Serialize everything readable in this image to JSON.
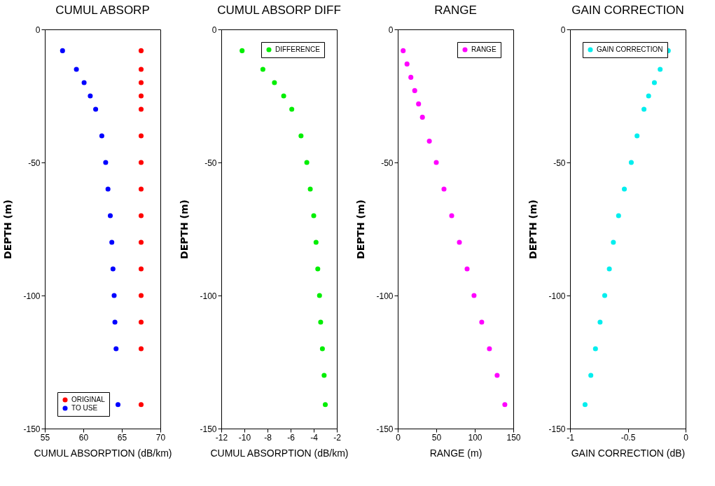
{
  "chart_data": [
    {
      "type": "scatter",
      "title": "CUMUL ABSORP",
      "xlabel": "CUMUL ABSORPTION (dB/km)",
      "ylabel": "DEPTH (m)",
      "xlim": [
        55,
        70
      ],
      "xticks": [
        55,
        60,
        65,
        70
      ],
      "ylim": [
        -150,
        0
      ],
      "yticks": [
        -150,
        -100,
        -50,
        0
      ],
      "marker": "circle",
      "legend": "bottom left",
      "grid": false,
      "series": [
        {
          "name": "ORIGINAL",
          "color": "#ff0000",
          "x": [
            67.5,
            67.5,
            67.5,
            67.5,
            67.5,
            67.5,
            67.5,
            67.5,
            67.5,
            67.5,
            67.5,
            67.5,
            67.5,
            67.5,
            67.5
          ],
          "values": [
            -8,
            -15,
            -20,
            -25,
            -30,
            -40,
            -50,
            -60,
            -70,
            -80,
            -90,
            -100,
            -110,
            -120,
            -141
          ]
        },
        {
          "name": "TO USE",
          "color": "#0000ff",
          "x": [
            57.3,
            59.1,
            60.1,
            60.9,
            61.6,
            62.4,
            62.9,
            63.2,
            63.5,
            63.7,
            63.85,
            64.0,
            64.1,
            64.25,
            64.5
          ],
          "values": [
            -8,
            -15,
            -20,
            -25,
            -30,
            -40,
            -50,
            -60,
            -70,
            -80,
            -90,
            -100,
            -110,
            -120,
            -141
          ]
        }
      ]
    },
    {
      "type": "scatter",
      "title": "CUMUL ABSORP DIFF",
      "xlabel": "CUMUL ABSORPTION (dB/km)",
      "ylabel": "DEPTH (m)",
      "xlim": [
        -12,
        -2
      ],
      "xticks": [
        -12,
        -10,
        -8,
        -6,
        -4,
        -2
      ],
      "ylim": [
        -150,
        0
      ],
      "yticks": [
        -150,
        -100,
        -50,
        0
      ],
      "marker": "circle",
      "legend": "top right",
      "grid": false,
      "series": [
        {
          "name": "DIFFERENCE",
          "color": "#00ee00",
          "x": [
            -10.2,
            -8.4,
            -7.4,
            -6.6,
            -5.9,
            -5.1,
            -4.6,
            -4.3,
            -4.0,
            -3.8,
            -3.65,
            -3.5,
            -3.4,
            -3.25,
            -3.1,
            -3.0
          ],
          "values": [
            -8,
            -15,
            -20,
            -25,
            -30,
            -40,
            -50,
            -60,
            -70,
            -80,
            -90,
            -100,
            -110,
            -120,
            -130,
            -141
          ]
        }
      ]
    },
    {
      "type": "scatter",
      "title": "RANGE",
      "xlabel": "RANGE (m)",
      "ylabel": "DEPTH (m)",
      "xlim": [
        0,
        150
      ],
      "xticks": [
        0,
        50,
        100,
        150
      ],
      "ylim": [
        -150,
        0
      ],
      "yticks": [
        -150,
        -100,
        -50,
        0
      ],
      "marker": "circle",
      "legend": "top right",
      "grid": false,
      "series": [
        {
          "name": "RANGE",
          "color": "#ff00ff",
          "x": [
            7,
            12,
            17,
            22,
            27,
            32,
            41,
            50,
            60,
            70,
            80,
            90,
            99,
            109,
            119,
            129,
            139
          ],
          "values": [
            -8,
            -13,
            -18,
            -23,
            -28,
            -33,
            -42,
            -50,
            -60,
            -70,
            -80,
            -90,
            -100,
            -110,
            -120,
            -130,
            -141
          ]
        }
      ]
    },
    {
      "type": "scatter",
      "title": "GAIN CORRECTION",
      "xlabel": "GAIN CORRECTION (dB)",
      "ylabel": "DEPTH (m)",
      "xlim": [
        -1,
        0
      ],
      "xticks": [
        -1,
        -0.5,
        0
      ],
      "ylim": [
        -150,
        0
      ],
      "yticks": [
        -150,
        -100,
        -50,
        0
      ],
      "marker": "circle",
      "legend": "top left",
      "grid": false,
      "series": [
        {
          "name": "GAIN CORRECTION",
          "color": "#00eeee",
          "x": [
            -0.15,
            -0.22,
            -0.27,
            -0.32,
            -0.36,
            -0.42,
            -0.47,
            -0.53,
            -0.58,
            -0.625,
            -0.66,
            -0.7,
            -0.74,
            -0.78,
            -0.82,
            -0.87
          ],
          "values": [
            -8,
            -15,
            -20,
            -25,
            -30,
            -40,
            -50,
            -60,
            -70,
            -80,
            -90,
            -100,
            -110,
            -120,
            -130,
            -141
          ]
        }
      ]
    }
  ]
}
